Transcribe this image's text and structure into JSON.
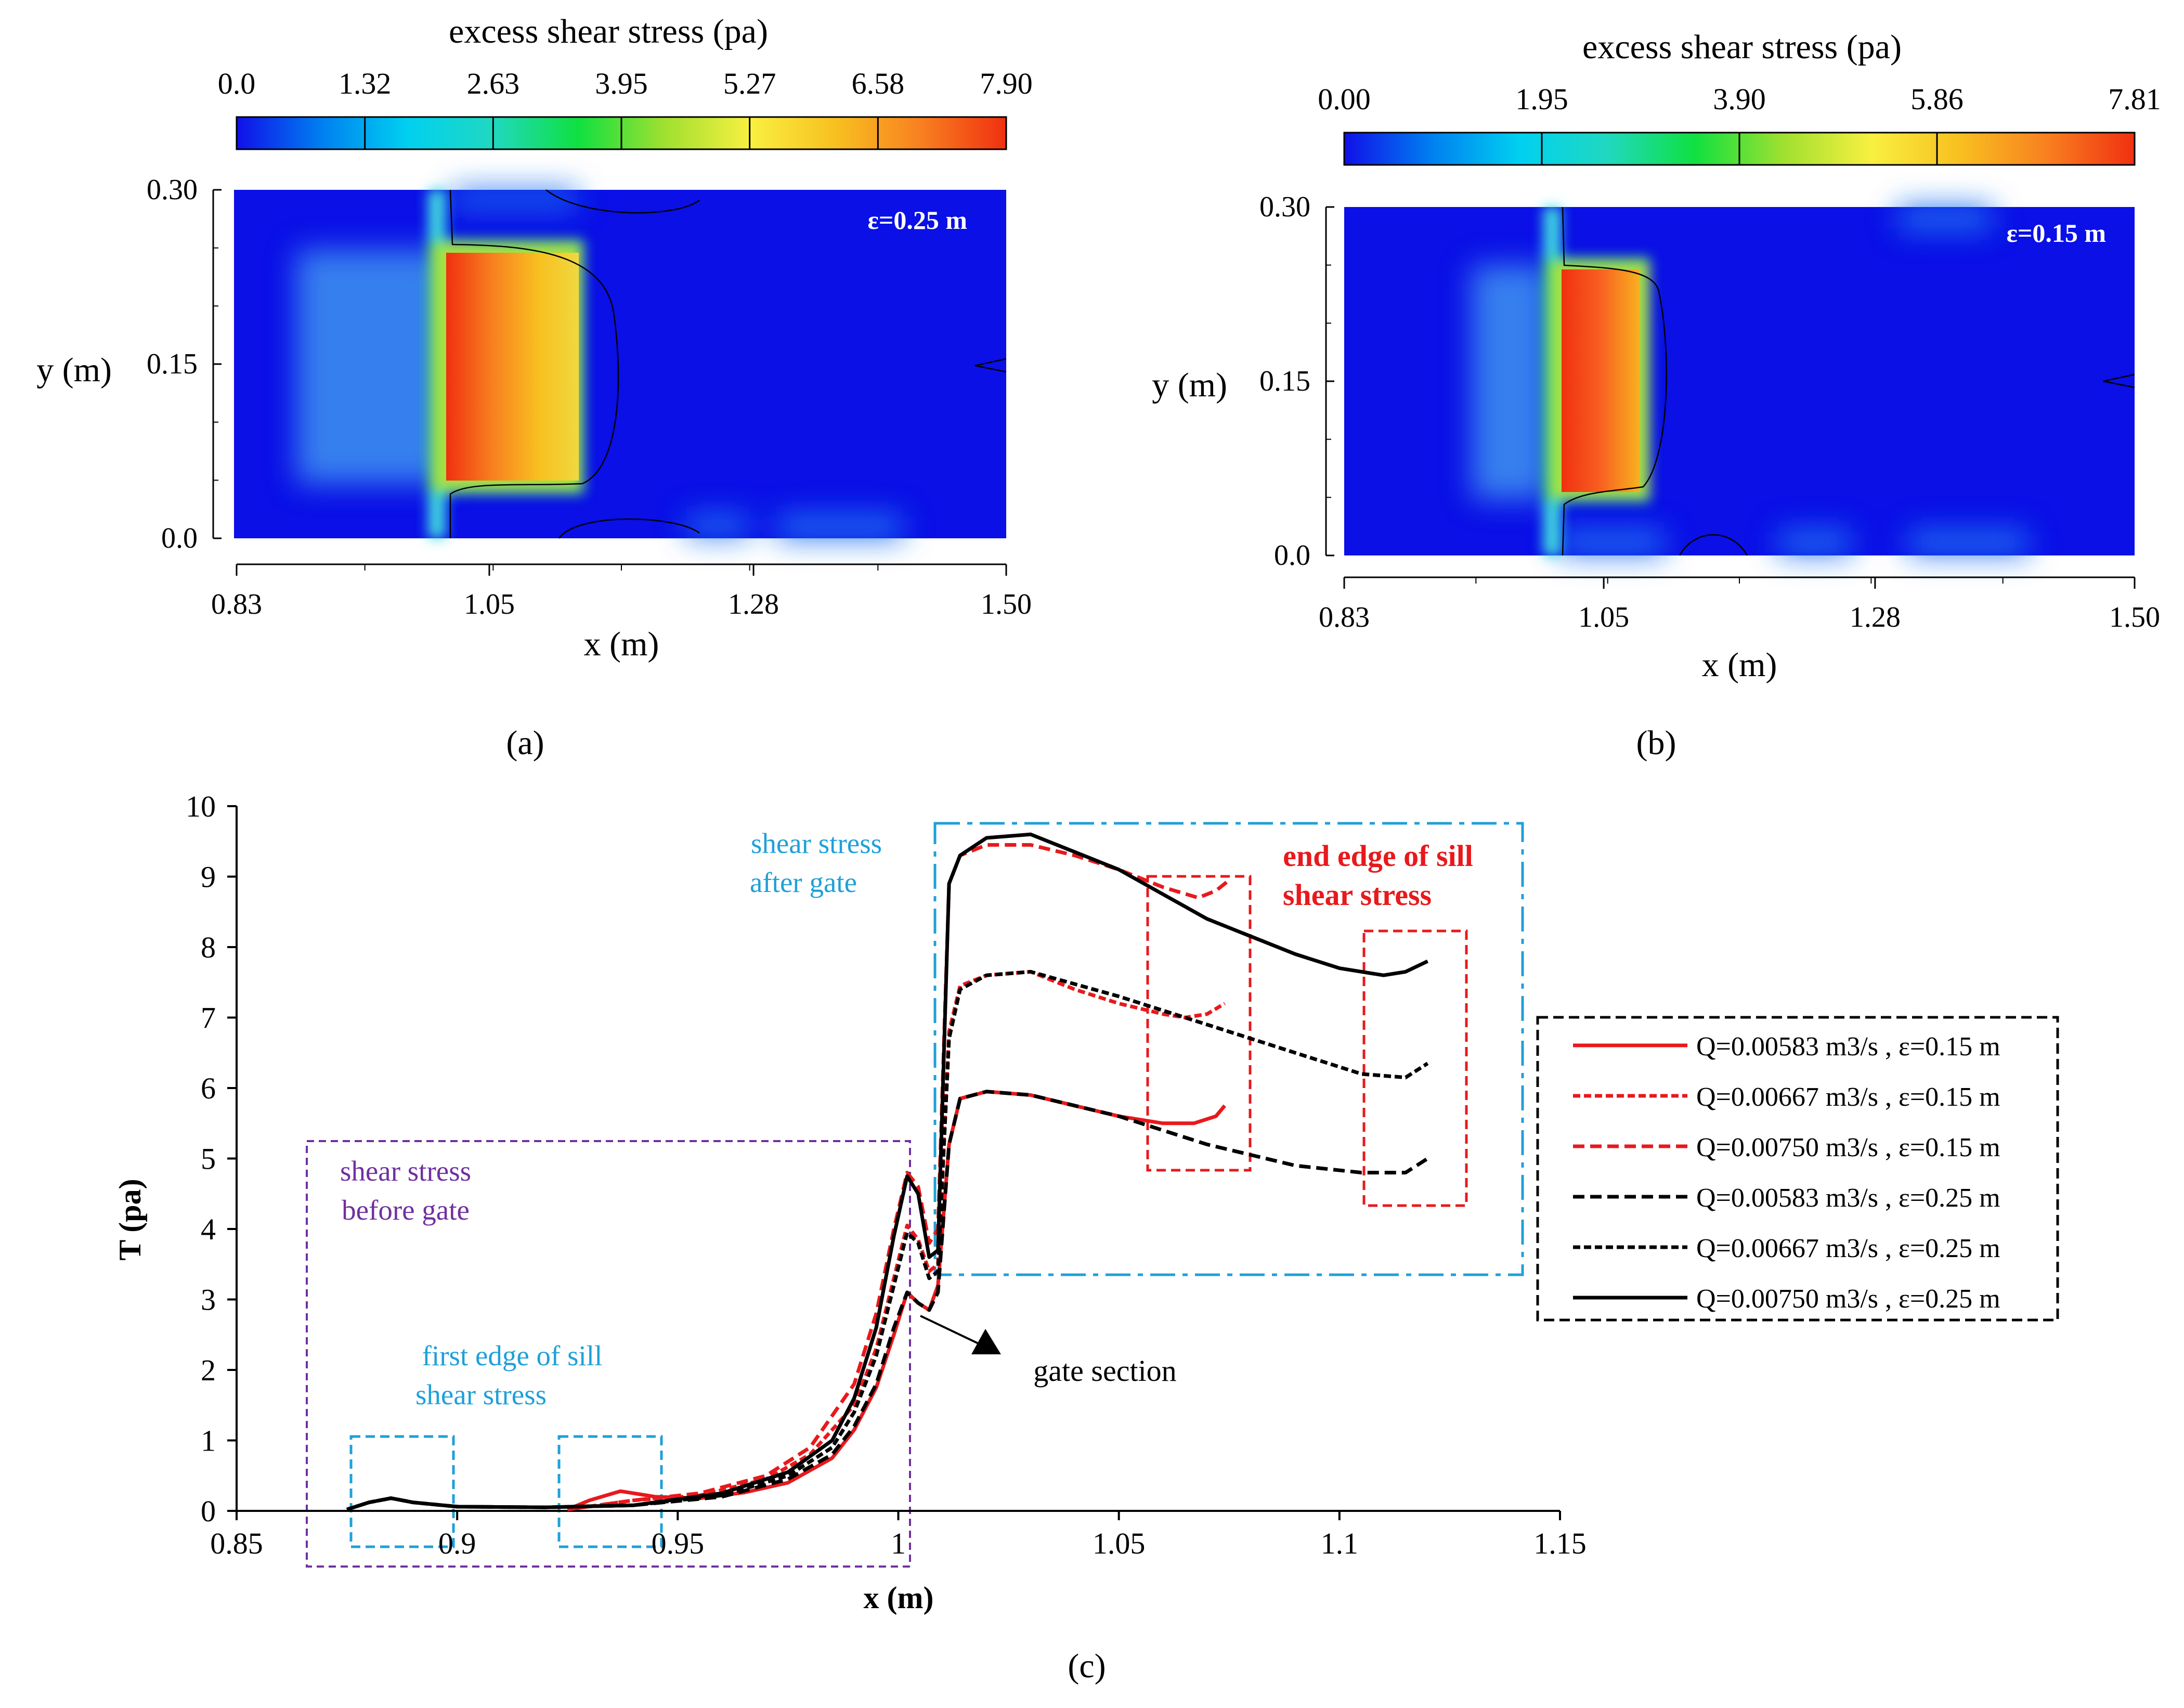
{
  "figure": {
    "panel_a_label": "(a)",
    "panel_b_label": "(b)",
    "panel_c_label": "(c)",
    "contour_colors": [
      "#1010e8",
      "#0080f0",
      "#00d0f0",
      "#20d8c0",
      "#10e040",
      "#a0e030",
      "#f8f040",
      "#f8c020",
      "#f88020",
      "#f03010"
    ]
  },
  "chart_data": [
    {
      "type": "heatmap",
      "panel": "a",
      "title": "excess shear stress (pa)",
      "colorbar_ticks": [
        "0.0",
        "1.32",
        "2.63",
        "3.95",
        "5.27",
        "6.58",
        "7.90"
      ],
      "colorbar_range": [
        0.0,
        7.9
      ],
      "annotation": "ε=0.25 m",
      "xlabel": "x (m)",
      "ylabel": "y (m)",
      "xticks": [
        "0.83",
        "1.05",
        "1.28",
        "1.50"
      ],
      "yticks": [
        "0.0",
        "0.15",
        "0.30"
      ],
      "xlim": [
        0.83,
        1.5
      ],
      "ylim": [
        0.0,
        0.3
      ],
      "high_stress_region": {
        "x_range": [
          1.01,
          1.12
        ],
        "y_range": [
          0.05,
          0.25
        ],
        "peak_value": 7.9
      }
    },
    {
      "type": "heatmap",
      "panel": "b",
      "title": "excess shear stress (pa)",
      "colorbar_ticks": [
        "0.00",
        "1.95",
        "3.90",
        "5.86",
        "7.81"
      ],
      "colorbar_range": [
        0.0,
        7.81
      ],
      "annotation": "ε=0.15 m",
      "xlabel": "x (m)",
      "ylabel": "y (m)",
      "xticks": [
        "0.83",
        "1.05",
        "1.28",
        "1.50"
      ],
      "yticks": [
        "0.0",
        "0.15",
        "0.30"
      ],
      "xlim": [
        0.83,
        1.5
      ],
      "ylim": [
        0.0,
        0.3
      ],
      "high_stress_region": {
        "x_range": [
          1.01,
          1.07
        ],
        "y_range": [
          0.05,
          0.24
        ],
        "peak_value": 7.81
      }
    },
    {
      "type": "line",
      "panel": "c",
      "xlabel": "x (m)",
      "ylabel": "T (pa)",
      "xlim": [
        0.85,
        1.15
      ],
      "ylim": [
        0,
        10
      ],
      "xticks": [
        0.85,
        0.9,
        0.95,
        1,
        1.05,
        1.1,
        1.15
      ],
      "yticks": [
        0,
        1,
        2,
        3,
        4,
        5,
        6,
        7,
        8,
        9,
        10
      ],
      "legend_position": "right",
      "series": [
        {
          "name": "Q=0.00583 m3/s , ε=0.15 m",
          "color": "#e8191c",
          "dash": "solid",
          "x": [
            0.925,
            0.93,
            0.937,
            0.945,
            0.955,
            0.965,
            0.975,
            0.985,
            0.99,
            0.995,
            0.999,
            1.002,
            1.0045,
            1.007,
            1.009,
            1.0115,
            1.014,
            1.02,
            1.03,
            1.04,
            1.05,
            1.06,
            1.067,
            1.072,
            1.074
          ],
          "y": [
            0.02,
            0.15,
            0.28,
            0.2,
            0.18,
            0.26,
            0.4,
            0.75,
            1.15,
            1.75,
            2.5,
            3.1,
            2.95,
            2.85,
            3.2,
            5.2,
            5.85,
            5.95,
            5.9,
            5.75,
            5.6,
            5.5,
            5.5,
            5.6,
            5.75
          ]
        },
        {
          "name": "Q=0.00667 m3/s , ε=0.15 m",
          "color": "#e8191c",
          "dash": "14 7",
          "x": [
            0.925,
            0.94,
            0.955,
            0.97,
            0.98,
            0.99,
            0.995,
            0.999,
            1.002,
            1.0045,
            1.007,
            1.009,
            1.0115,
            1.014,
            1.02,
            1.03,
            1.04,
            1.05,
            1.06,
            1.065,
            1.07,
            1.074
          ],
          "y": [
            0.02,
            0.15,
            0.22,
            0.45,
            0.8,
            1.5,
            2.3,
            3.3,
            4.05,
            3.85,
            3.4,
            3.5,
            6.8,
            7.45,
            7.6,
            7.65,
            7.4,
            7.2,
            7.05,
            7.0,
            7.05,
            7.2
          ]
        },
        {
          "name": "Q=0.00750 m3/s , ε=0.15 m",
          "color": "#e8191c",
          "dash": "22 11",
          "x": [
            0.925,
            0.94,
            0.955,
            0.97,
            0.98,
            0.99,
            0.995,
            0.999,
            1.002,
            1.0045,
            1.007,
            1.009,
            1.0115,
            1.014,
            1.02,
            1.03,
            1.04,
            1.05,
            1.06,
            1.068,
            1.072,
            1.075
          ],
          "y": [
            0.02,
            0.15,
            0.25,
            0.5,
            0.9,
            1.8,
            2.8,
            4.0,
            4.8,
            4.6,
            3.8,
            4.0,
            8.9,
            9.3,
            9.45,
            9.45,
            9.3,
            9.1,
            8.85,
            8.7,
            8.8,
            8.95
          ]
        },
        {
          "name": "Q=0.00583 m3/s , ε=0.25 m",
          "color": "#000000",
          "dash": "22 11",
          "x": [
            0.875,
            0.88,
            0.885,
            0.89,
            0.9,
            0.92,
            0.94,
            0.96,
            0.975,
            0.985,
            0.99,
            0.995,
            0.999,
            1.002,
            1.0045,
            1.007,
            1.009,
            1.0115,
            1.014,
            1.02,
            1.03,
            1.05,
            1.07,
            1.09,
            1.105,
            1.115,
            1.12
          ],
          "y": [
            0.02,
            0.12,
            0.18,
            0.12,
            0.06,
            0.05,
            0.08,
            0.2,
            0.45,
            0.8,
            1.2,
            1.8,
            2.6,
            3.1,
            2.95,
            2.85,
            3.1,
            5.2,
            5.85,
            5.95,
            5.9,
            5.6,
            5.2,
            4.9,
            4.8,
            4.8,
            5.0
          ]
        },
        {
          "name": "Q=0.00667 m3/s , ε=0.25 m",
          "color": "#000000",
          "dash": "14 7",
          "x": [
            0.875,
            0.88,
            0.885,
            0.89,
            0.9,
            0.92,
            0.94,
            0.96,
            0.975,
            0.985,
            0.99,
            0.995,
            0.999,
            1.002,
            1.0045,
            1.007,
            1.009,
            1.0115,
            1.014,
            1.02,
            1.03,
            1.05,
            1.07,
            1.09,
            1.105,
            1.115,
            1.12
          ],
          "y": [
            0.02,
            0.12,
            0.18,
            0.12,
            0.06,
            0.05,
            0.08,
            0.22,
            0.5,
            0.9,
            1.4,
            2.2,
            3.2,
            3.95,
            3.8,
            3.3,
            3.4,
            6.7,
            7.4,
            7.6,
            7.65,
            7.3,
            6.9,
            6.5,
            6.2,
            6.15,
            6.35
          ]
        },
        {
          "name": "Q=0.00750 m3/s , ε=0.25 m",
          "color": "#000000",
          "dash": "solid",
          "x": [
            0.875,
            0.88,
            0.885,
            0.89,
            0.9,
            0.92,
            0.94,
            0.96,
            0.975,
            0.985,
            0.99,
            0.995,
            0.999,
            1.002,
            1.0045,
            1.007,
            1.009,
            1.0115,
            1.014,
            1.02,
            1.03,
            1.05,
            1.07,
            1.09,
            1.1,
            1.11,
            1.115,
            1.12
          ],
          "y": [
            0.02,
            0.12,
            0.18,
            0.12,
            0.06,
            0.05,
            0.08,
            0.25,
            0.55,
            1.0,
            1.6,
            2.6,
            3.9,
            4.75,
            4.5,
            3.6,
            3.7,
            8.9,
            9.3,
            9.55,
            9.6,
            9.1,
            8.4,
            7.9,
            7.7,
            7.6,
            7.65,
            7.8
          ]
        }
      ],
      "annotations": {
        "after_gate": [
          "shear stress",
          "after gate"
        ],
        "end_edge": [
          "end edge of sill",
          "shear stress"
        ],
        "before_gate": [
          "shear stress",
          "before gate"
        ],
        "first_edge": [
          "first edge of sill",
          "shear stress"
        ],
        "gate_section": "gate section"
      },
      "annotation_colors": {
        "after_gate": "#1fa0d8",
        "end_edge": "#e8191c",
        "before_gate": "#7030a0",
        "first_edge": "#1fa0d8",
        "gate_section": "#000000"
      }
    }
  ]
}
